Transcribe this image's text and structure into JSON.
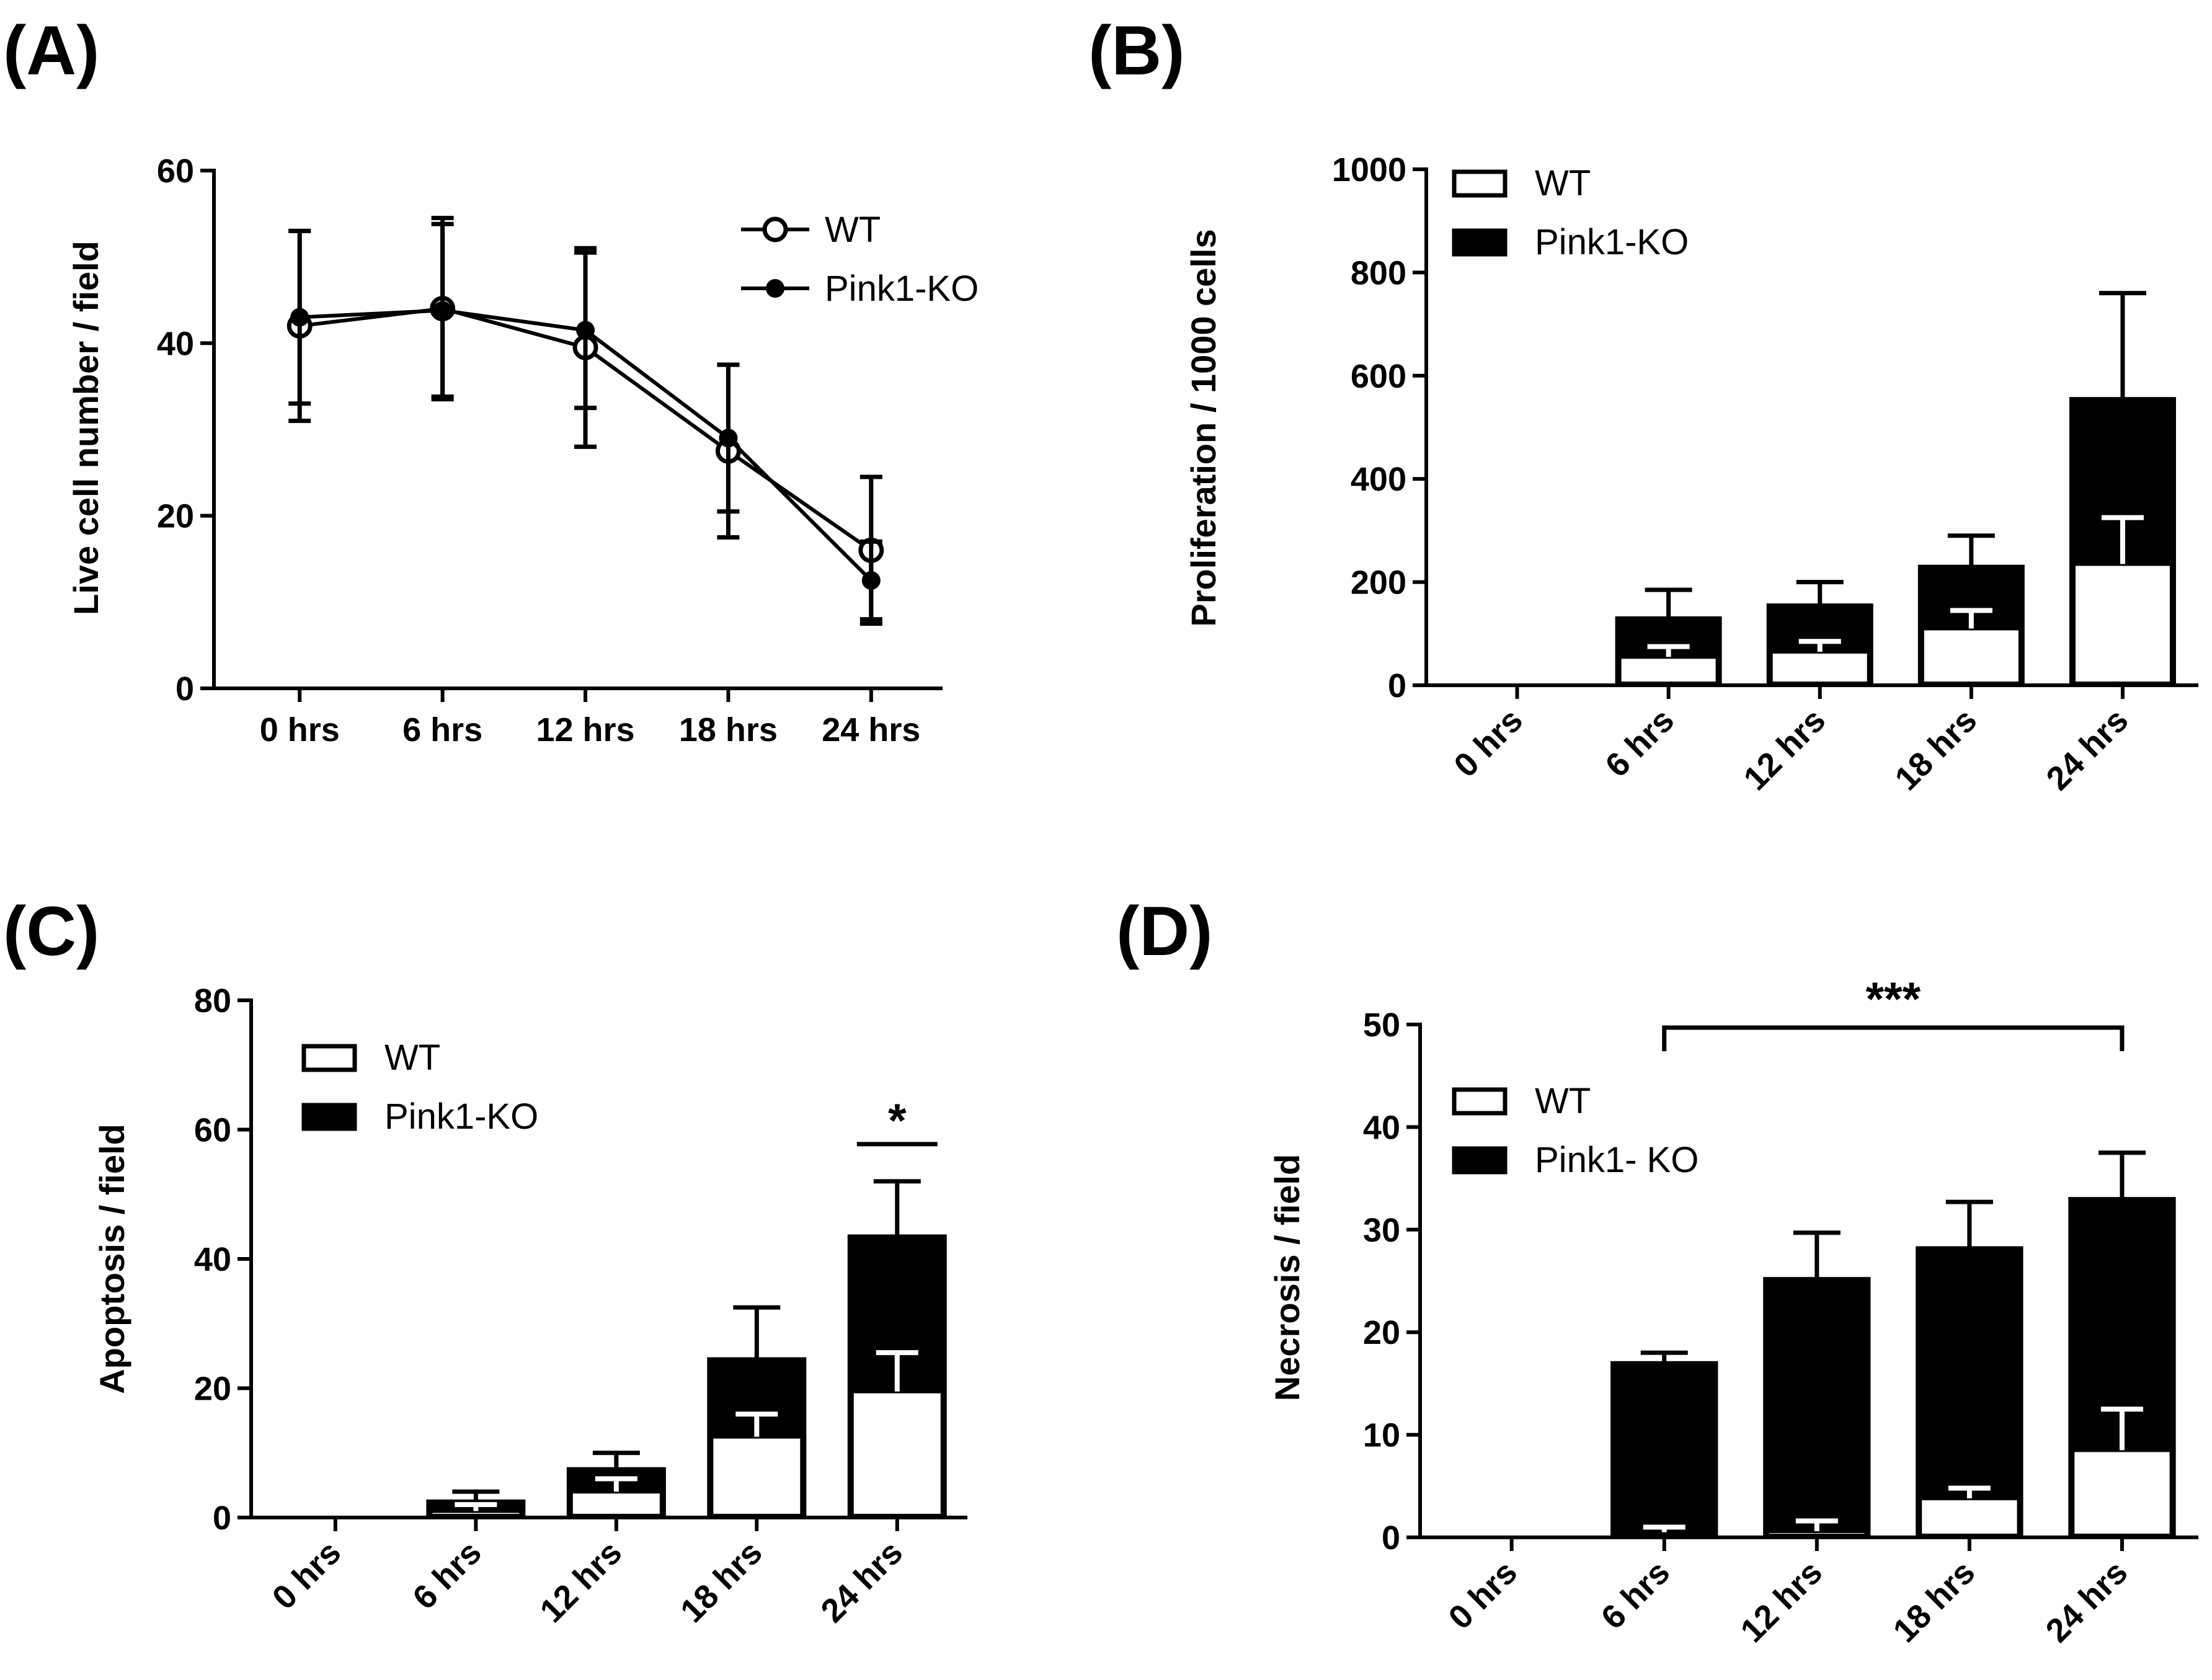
{
  "figure": {
    "panels": [
      "(A)",
      "(B)",
      "(C)",
      "(D)"
    ]
  },
  "chart_data": [
    {
      "panel": "(A)",
      "type": "line",
      "ylabel": "Live cell number / field",
      "xlabel": "",
      "categories": [
        "0 hrs",
        "6 hrs",
        "12 hrs",
        "18 hrs",
        "24 hrs"
      ],
      "ylim": [
        0,
        60
      ],
      "yticks": [
        "0",
        "20",
        "40",
        "60"
      ],
      "series": [
        {
          "name": "WT",
          "marker": "open-circle",
          "values": [
            42,
            44,
            39.5,
            27.5,
            16
          ],
          "errors": [
            11,
            10.5,
            11.5,
            10,
            8.5
          ]
        },
        {
          "name": "Pink1-KO",
          "marker": "filled-circle",
          "values": [
            43,
            43.8,
            41.5,
            29,
            12.5
          ],
          "errors": [
            10,
            10,
            9,
            8.5,
            4.5
          ]
        }
      ],
      "legend": "top-right"
    },
    {
      "panel": "(B)",
      "type": "bar",
      "stacked": true,
      "ylabel": "Proliferation / 1000 cells",
      "xlabel": "",
      "categories": [
        "0 hrs",
        "6 hrs",
        "12 hrs",
        "18 hrs",
        "24 hrs"
      ],
      "ylim": [
        0,
        1000
      ],
      "yticks": [
        "0",
        "200",
        "400",
        "600",
        "800",
        "1000"
      ],
      "series": [
        {
          "name": "WT",
          "color": "#ffffff",
          "values": [
            0,
            55,
            65,
            110,
            235
          ],
          "errors": [
            0,
            20,
            20,
            35,
            90
          ]
        },
        {
          "name": "Pink1-KO",
          "color": "#000000",
          "values": [
            0,
            130,
            155,
            230,
            555
          ],
          "errors": [
            0,
            55,
            45,
            60,
            205
          ]
        }
      ],
      "legend": "top-left",
      "annotations": []
    },
    {
      "panel": "(C)",
      "type": "bar",
      "stacked": true,
      "ylabel": "Apoptosis / field",
      "xlabel": "",
      "categories": [
        "0 hrs",
        "6 hrs",
        "12 hrs",
        "18 hrs",
        "24 hrs"
      ],
      "ylim": [
        0,
        80
      ],
      "yticks": [
        "0",
        "20",
        "40",
        "60",
        "80"
      ],
      "series": [
        {
          "name": "WT",
          "color": "#ffffff",
          "values": [
            0,
            1,
            4,
            12.5,
            19.5
          ],
          "errors": [
            0,
            1,
            2,
            3.5,
            6
          ]
        },
        {
          "name": "Pink1-KO",
          "color": "#000000",
          "values": [
            0,
            2.5,
            7.5,
            24.5,
            43.5
          ],
          "errors": [
            0,
            1.5,
            2.5,
            8,
            8.5
          ]
        }
      ],
      "legend": "top-left",
      "annotations": [
        {
          "text": "*",
          "category": "24 hrs"
        }
      ]
    },
    {
      "panel": "(D)",
      "type": "bar",
      "stacked": true,
      "ylabel": "Necrosis / field",
      "xlabel": "",
      "categories": [
        "0 hrs",
        "6 hrs",
        "12 hrs",
        "18 hrs",
        "24 hrs"
      ],
      "ylim": [
        0,
        50
      ],
      "yticks": [
        "0",
        "10",
        "20",
        "30",
        "40",
        "50"
      ],
      "series": [
        {
          "name": "WT",
          "color": "#ffffff",
          "values": [
            0,
            0.5,
            0.6,
            3.8,
            8.5
          ],
          "errors": [
            0,
            0.5,
            1,
            1,
            4
          ]
        },
        {
          "name": "Pink1- KO",
          "color": "#000000",
          "values": [
            0,
            17,
            25.2,
            28.2,
            33
          ],
          "errors": [
            0,
            1,
            4.5,
            4.5,
            4.5
          ]
        }
      ],
      "legend": "top-left",
      "annotations": [
        {
          "text": "***",
          "from": "6 hrs",
          "to": "24 hrs"
        }
      ]
    }
  ]
}
